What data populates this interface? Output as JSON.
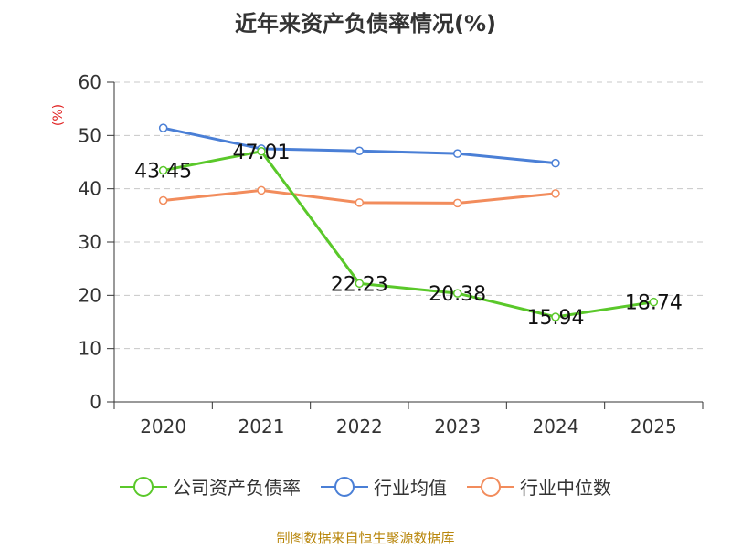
{
  "chart_data": {
    "type": "line",
    "title": "近年来资产负债率情况(%)",
    "ylabel": "(%)",
    "xlabel": "",
    "categories": [
      "2020",
      "2021",
      "2022",
      "2023",
      "2024",
      "2025"
    ],
    "ylim": [
      0,
      60
    ],
    "yticks": [
      0,
      10,
      20,
      30,
      40,
      50,
      60
    ],
    "grid": true,
    "legend_position": "bottom",
    "series": [
      {
        "name": "公司资产负债率",
        "color": "#5ac82a",
        "values": [
          43.45,
          47.01,
          22.23,
          20.38,
          15.94,
          18.74
        ],
        "labels": [
          "43.45",
          "47.01",
          "22.23",
          "20.38",
          "15.94",
          "18.74"
        ]
      },
      {
        "name": "行业均值",
        "color": "#4a7fd6",
        "values": [
          51.4,
          47.5,
          47.1,
          46.6,
          44.8,
          null
        ]
      },
      {
        "name": "行业中位数",
        "color": "#f28c5c",
        "values": [
          37.8,
          39.7,
          37.4,
          37.3,
          39.1,
          null
        ]
      }
    ]
  },
  "footer": {
    "source": "制图数据来自恒生聚源数据库"
  }
}
